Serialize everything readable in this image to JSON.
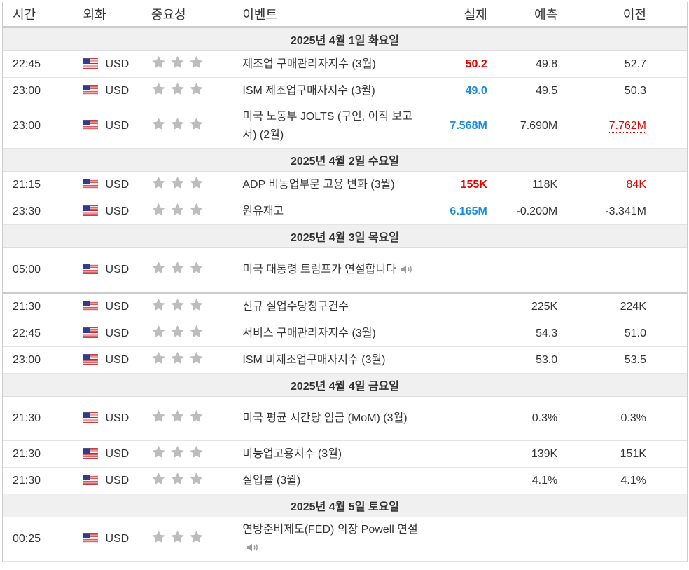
{
  "header": {
    "time": "시간",
    "currency": "외화",
    "importance": "중요성",
    "event": "이벤트",
    "actual": "실제",
    "forecast": "예측",
    "previous": "이전"
  },
  "colors": {
    "actual_red": "#e60000",
    "actual_blue": "#1a8be0",
    "day_bg": "#f0f0f0"
  },
  "days": [
    {
      "label": "2025년 4월 1일 화요일",
      "events": [
        {
          "time": "22:45",
          "currency": "USD",
          "event": "제조업 구매관리자지수 (3월)",
          "actual": "50.2",
          "actual_color": "red",
          "forecast": "49.8",
          "previous": "52.7",
          "previous_style": "normal",
          "tall": false,
          "speech": false
        },
        {
          "time": "23:00",
          "currency": "USD",
          "event": "ISM 제조업구매자지수 (3월)",
          "actual": "49.0",
          "actual_color": "blue",
          "forecast": "49.5",
          "previous": "50.3",
          "previous_style": "normal",
          "tall": false,
          "speech": false
        },
        {
          "time": "23:00",
          "currency": "USD",
          "event": "미국 노동부 JOLTS (구인, 이직 보고서) (2월)",
          "actual": "7.568M",
          "actual_color": "blue",
          "forecast": "7.690M",
          "previous": "7.762M",
          "previous_style": "red",
          "tall": true,
          "speech": false
        }
      ]
    },
    {
      "label": "2025년 4월 2일 수요일",
      "events": [
        {
          "time": "21:15",
          "currency": "USD",
          "event": "ADP 비농업부문 고용 변화 (3월)",
          "actual": "155K",
          "actual_color": "red",
          "forecast": "118K",
          "previous": "84K",
          "previous_style": "red",
          "tall": false,
          "speech": false
        },
        {
          "time": "23:30",
          "currency": "USD",
          "event": "원유재고",
          "actual": "6.165M",
          "actual_color": "blue",
          "forecast": "-0.200M",
          "previous": "-3.341M",
          "previous_style": "normal",
          "tall": false,
          "speech": false
        }
      ]
    },
    {
      "label": "2025년 4월 3일 목요일",
      "events": [
        {
          "time": "05:00",
          "currency": "USD",
          "event": "미국 대통령 트럼프가 연설합니다",
          "actual": "",
          "actual_color": "",
          "forecast": "",
          "previous": "",
          "previous_style": "normal",
          "tall": true,
          "speech": true
        },
        {
          "time": "21:30",
          "currency": "USD",
          "event": "신규 실업수당청구건수",
          "actual": "",
          "actual_color": "",
          "forecast": "225K",
          "previous": "224K",
          "previous_style": "normal",
          "tall": false,
          "speech": false
        },
        {
          "time": "22:45",
          "currency": "USD",
          "event": "서비스 구매관리자지수 (3월)",
          "actual": "",
          "actual_color": "",
          "forecast": "54.3",
          "previous": "51.0",
          "previous_style": "normal",
          "tall": false,
          "speech": false
        },
        {
          "time": "23:00",
          "currency": "USD",
          "event": "ISM 비제조업구매자지수 (3월)",
          "actual": "",
          "actual_color": "",
          "forecast": "53.0",
          "previous": "53.5",
          "previous_style": "normal",
          "tall": false,
          "speech": false
        }
      ]
    },
    {
      "label": "2025년 4월 4일 금요일",
      "events": [
        {
          "time": "21:30",
          "currency": "USD",
          "event": "미국 평균 시간당 임금 (MoM) (3월)",
          "actual": "",
          "actual_color": "",
          "forecast": "0.3%",
          "previous": "0.3%",
          "previous_style": "normal",
          "tall": true,
          "speech": false
        },
        {
          "time": "21:30",
          "currency": "USD",
          "event": "비농업고용지수 (3월)",
          "actual": "",
          "actual_color": "",
          "forecast": "139K",
          "previous": "151K",
          "previous_style": "normal",
          "tall": false,
          "speech": false
        },
        {
          "time": "21:30",
          "currency": "USD",
          "event": "실업률 (3월)",
          "actual": "",
          "actual_color": "",
          "forecast": "4.1%",
          "previous": "4.1%",
          "previous_style": "normal",
          "tall": false,
          "speech": false
        }
      ]
    },
    {
      "label": "2025년 4월 5일 토요일",
      "events": [
        {
          "time": "00:25",
          "currency": "USD",
          "event": "연방준비제도(FED) 의장 Powell 연설",
          "actual": "",
          "actual_color": "",
          "forecast": "",
          "previous": "",
          "previous_style": "normal",
          "tall": true,
          "speech": true
        }
      ]
    }
  ],
  "icons": {
    "flag": "us-flag-icon",
    "importance": "star-icon",
    "speech": "speaker-icon"
  }
}
